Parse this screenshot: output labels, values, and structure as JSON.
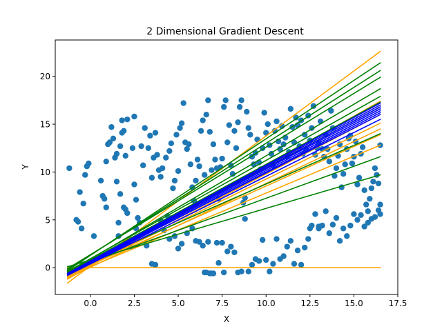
{
  "chart_data": {
    "type": "scatter",
    "title": "2 Dimensional Gradient Descent",
    "xlabel": "X",
    "ylabel": "Y",
    "xlim": [
      -2.0,
      17.5
    ],
    "ylim": [
      -2.8,
      23.8
    ],
    "xticks": [
      "0.0",
      "2.5",
      "5.0",
      "7.5",
      "10.0",
      "12.5",
      "15.0",
      "17.5"
    ],
    "yticks": [
      "0",
      "5",
      "10",
      "15",
      "20"
    ],
    "grid": false,
    "colors": {
      "points": "#1f77b4",
      "orange": "#ffa500",
      "green": "#008000",
      "blue": "#0000ff"
    },
    "points": [
      [
        -1.2,
        10.4
      ],
      [
        -0.8,
        5.0
      ],
      [
        -0.7,
        4.8
      ],
      [
        -0.6,
        7.9
      ],
      [
        -0.5,
        4.1
      ],
      [
        -0.4,
        6.7
      ],
      [
        -0.3,
        9.7
      ],
      [
        -0.2,
        10.6
      ],
      [
        -0.1,
        10.9
      ],
      [
        0.2,
        3.3
      ],
      [
        0.6,
        9.1
      ],
      [
        0.7,
        7.5
      ],
      [
        0.8,
        7.2
      ],
      [
        0.9,
        6.3
      ],
      [
        0.9,
        11.1
      ],
      [
        1.0,
        12.9
      ],
      [
        1.1,
        13.1
      ],
      [
        1.2,
        14.7
      ],
      [
        1.3,
        13.5
      ],
      [
        1.4,
        11.5
      ],
      [
        1.5,
        11.9
      ],
      [
        1.5,
        9.0
      ],
      [
        1.6,
        4.7
      ],
      [
        1.6,
        3.3
      ],
      [
        1.7,
        7.7
      ],
      [
        1.7,
        12.7
      ],
      [
        1.8,
        14.1
      ],
      [
        1.8,
        15.4
      ],
      [
        1.9,
        6.3
      ],
      [
        1.9,
        14.3
      ],
      [
        2.0,
        11.7
      ],
      [
        2.0,
        6.1
      ],
      [
        2.1,
        15.5
      ],
      [
        2.1,
        5.7
      ],
      [
        2.2,
        3.0
      ],
      [
        2.3,
        2.2
      ],
      [
        2.4,
        12.5
      ],
      [
        2.5,
        8.7
      ],
      [
        2.5,
        15.8
      ],
      [
        2.6,
        4.1
      ],
      [
        2.6,
        7.1
      ],
      [
        2.7,
        5.2
      ],
      [
        2.8,
        4.7
      ],
      [
        2.9,
        12.7
      ],
      [
        3.0,
        10.7
      ],
      [
        3.1,
        14.6
      ],
      [
        3.2,
        2.3
      ],
      [
        3.3,
        12.5
      ],
      [
        3.4,
        13.8
      ],
      [
        3.5,
        9.4
      ],
      [
        3.6,
        11.5
      ],
      [
        3.7,
        14.1
      ],
      [
        3.8,
        11.8
      ],
      [
        3.9,
        10.2
      ],
      [
        4.0,
        9.5
      ],
      [
        4.1,
        10.4
      ],
      [
        4.3,
        11.5
      ],
      [
        4.4,
        5.4
      ],
      [
        4.5,
        12.2
      ],
      [
        4.6,
        13.0
      ],
      [
        4.7,
        8.3
      ],
      [
        4.8,
        9.1
      ],
      [
        4.9,
        13.9
      ],
      [
        5.0,
        10.1
      ],
      [
        5.1,
        14.6
      ],
      [
        5.2,
        15.1
      ],
      [
        5.3,
        17.2
      ],
      [
        5.4,
        13.1
      ],
      [
        5.5,
        12.4
      ],
      [
        5.6,
        12.9
      ],
      [
        5.7,
        10.8
      ],
      [
        5.8,
        8.4
      ],
      [
        5.9,
        7.0
      ],
      [
        6.0,
        9.1
      ],
      [
        6.1,
        11.3
      ],
      [
        6.2,
        10.6
      ],
      [
        6.3,
        14.3
      ],
      [
        6.4,
        15.4
      ],
      [
        6.5,
        9.7
      ],
      [
        6.6,
        16.0
      ],
      [
        6.7,
        17.5
      ],
      [
        6.8,
        14.2
      ],
      [
        6.9,
        10.2
      ],
      [
        7.0,
        12.9
      ],
      [
        7.1,
        11.3
      ],
      [
        7.2,
        10.4
      ],
      [
        7.3,
        7.2
      ],
      [
        7.4,
        10.5
      ],
      [
        7.5,
        11.4
      ],
      [
        7.6,
        16.8
      ],
      [
        7.7,
        17.5
      ],
      [
        7.8,
        13.1
      ],
      [
        7.9,
        14.9
      ],
      [
        8.0,
        10.7
      ],
      [
        8.1,
        9.8
      ],
      [
        8.2,
        14.3
      ],
      [
        8.3,
        12.5
      ],
      [
        8.4,
        15.2
      ],
      [
        8.5,
        16.8
      ],
      [
        8.6,
        17.5
      ],
      [
        8.7,
        6.8
      ],
      [
        8.8,
        7.3
      ],
      [
        8.9,
        16.3
      ],
      [
        9.0,
        14.6
      ],
      [
        9.1,
        13.9
      ],
      [
        9.2,
        11.6
      ],
      [
        9.3,
        10.8
      ],
      [
        9.4,
        12.0
      ],
      [
        9.5,
        13.4
      ],
      [
        9.6,
        11.0
      ],
      [
        9.7,
        10.3
      ],
      [
        9.8,
        12.5
      ],
      [
        9.9,
        16.2
      ],
      [
        10.0,
        14.1
      ],
      [
        10.1,
        15.0
      ],
      [
        10.2,
        12.8
      ],
      [
        10.3,
        11.9
      ],
      [
        10.4,
        10.7
      ],
      [
        10.5,
        14.3
      ],
      [
        10.6,
        15.3
      ],
      [
        10.7,
        13.2
      ],
      [
        10.8,
        12.4
      ],
      [
        10.9,
        14.8
      ],
      [
        11.0,
        12.9
      ],
      [
        11.1,
        13.6
      ],
      [
        11.2,
        11.6
      ],
      [
        11.3,
        12.1
      ],
      [
        11.4,
        16.6
      ],
      [
        11.5,
        14.7
      ],
      [
        11.6,
        13.1
      ],
      [
        11.7,
        15.7
      ],
      [
        11.8,
        14.9
      ],
      [
        11.9,
        12.7
      ],
      [
        12.0,
        15.4
      ],
      [
        12.1,
        11.9
      ],
      [
        12.2,
        13.9
      ],
      [
        12.3,
        12.3
      ],
      [
        12.4,
        15.9
      ],
      [
        12.5,
        13.3
      ],
      [
        12.6,
        14.6
      ],
      [
        12.7,
        16.9
      ],
      [
        12.8,
        11.8
      ],
      [
        12.9,
        12.5
      ],
      [
        13.0,
        13.0
      ],
      [
        13.1,
        15.3
      ],
      [
        13.2,
        12.4
      ],
      [
        13.3,
        11.6
      ],
      [
        13.4,
        13.9
      ],
      [
        13.5,
        12.4
      ],
      [
        13.6,
        11.1
      ],
      [
        13.7,
        16.4
      ],
      [
        13.8,
        14.6
      ],
      [
        13.9,
        9.6
      ],
      [
        14.0,
        10.4
      ],
      [
        14.1,
        11.7
      ],
      [
        14.2,
        12.9
      ],
      [
        14.3,
        8.4
      ],
      [
        14.4,
        9.8
      ],
      [
        14.5,
        10.8
      ],
      [
        14.6,
        12.4
      ],
      [
        14.7,
        13.5
      ],
      [
        14.8,
        13.8
      ],
      [
        14.9,
        10.9
      ],
      [
        15.0,
        11.6
      ],
      [
        15.1,
        13.2
      ],
      [
        15.2,
        8.7
      ],
      [
        15.3,
        9.4
      ],
      [
        15.4,
        11.9
      ],
      [
        15.5,
        12.6
      ],
      [
        15.6,
        8.1
      ],
      [
        15.7,
        6.6
      ],
      [
        15.8,
        5.9
      ],
      [
        15.9,
        7.2
      ],
      [
        16.0,
        8.3
      ],
      [
        16.1,
        9.0
      ],
      [
        16.2,
        10.4
      ],
      [
        16.3,
        9.7
      ],
      [
        16.4,
        8.8
      ],
      [
        16.5,
        6.6
      ],
      [
        16.5,
        12.8
      ],
      [
        3.5,
        0.4
      ],
      [
        3.7,
        0.3
      ],
      [
        4.0,
        4.9
      ],
      [
        4.2,
        3.9
      ],
      [
        4.5,
        3.0
      ],
      [
        4.8,
        3.3
      ],
      [
        5.0,
        2.0
      ],
      [
        5.2,
        2.5
      ],
      [
        5.5,
        3.6
      ],
      [
        5.8,
        4.1
      ],
      [
        6.0,
        2.8
      ],
      [
        6.2,
        2.7
      ],
      [
        6.4,
        2.3
      ],
      [
        6.5,
        -0.5
      ],
      [
        6.6,
        -0.5
      ],
      [
        6.7,
        2.7
      ],
      [
        6.8,
        -0.6
      ],
      [
        6.9,
        -0.6
      ],
      [
        7.0,
        -0.6
      ],
      [
        7.2,
        2.6
      ],
      [
        7.3,
        0.5
      ],
      [
        7.5,
        2.6
      ],
      [
        7.6,
        -0.5
      ],
      [
        7.8,
        1.7
      ],
      [
        8.0,
        2.2
      ],
      [
        8.2,
        1.6
      ],
      [
        8.4,
        -0.5
      ],
      [
        8.6,
        -0.4
      ],
      [
        8.8,
        5.1
      ],
      [
        9.0,
        -0.4
      ],
      [
        9.2,
        0.3
      ],
      [
        9.4,
        0.9
      ],
      [
        9.6,
        0.7
      ],
      [
        9.8,
        2.9
      ],
      [
        10.0,
        0.8
      ],
      [
        10.2,
        -0.4
      ],
      [
        10.4,
        0.4
      ],
      [
        10.6,
        3.0
      ],
      [
        10.8,
        0.9
      ],
      [
        11.0,
        1.2
      ],
      [
        11.2,
        2.2
      ],
      [
        11.4,
        2.8
      ],
      [
        11.6,
        0.4
      ],
      [
        11.8,
        1.8
      ],
      [
        12.0,
        0.3
      ],
      [
        12.2,
        2.1
      ],
      [
        12.4,
        3.0
      ],
      [
        12.6,
        4.4
      ],
      [
        12.8,
        5.6
      ],
      [
        13.0,
        4.1
      ],
      [
        13.2,
        4.4
      ],
      [
        13.4,
        5.9
      ],
      [
        13.6,
        3.6
      ],
      [
        13.8,
        4.5
      ],
      [
        14.0,
        5.2
      ],
      [
        14.2,
        2.8
      ],
      [
        14.4,
        4.1
      ],
      [
        14.6,
        3.3
      ],
      [
        14.8,
        4.4
      ],
      [
        15.0,
        5.6
      ],
      [
        15.2,
        5.0
      ],
      [
        15.4,
        5.5
      ],
      [
        15.6,
        4.3
      ],
      [
        15.8,
        4.7
      ],
      [
        16.0,
        5.1
      ],
      [
        16.2,
        5.3
      ],
      [
        16.4,
        6.0
      ],
      [
        16.5,
        5.6
      ],
      [
        12.5,
        4.1
      ],
      [
        13.0,
        4.3
      ]
    ],
    "lines": [
      {
        "color": "#ffa500",
        "x": [
          -1.3,
          16.5
        ],
        "y": [
          0.0,
          0.0
        ]
      },
      {
        "color": "#ffa500",
        "x": [
          -1.3,
          16.5
        ],
        "y": [
          -1.6,
          22.6
        ]
      },
      {
        "color": "#ffa500",
        "x": [
          -1.3,
          16.5
        ],
        "y": [
          -0.9,
          12.8
        ]
      },
      {
        "color": "#ffa500",
        "x": [
          -1.3,
          16.5
        ],
        "y": [
          -1.1,
          14.5
        ]
      },
      {
        "color": "#ffa500",
        "x": [
          -1.3,
          16.5
        ],
        "y": [
          -0.8,
          13.9
        ]
      },
      {
        "color": "#ffa500",
        "x": [
          -1.3,
          16.5
        ],
        "y": [
          -0.9,
          15.1
        ]
      },
      {
        "color": "#ffa500",
        "x": [
          -1.3,
          16.5
        ],
        "y": [
          -1.2,
          17.4
        ]
      },
      {
        "color": "#ffa500",
        "x": [
          -1.3,
          16.5
        ],
        "y": [
          -1.0,
          16.0
        ]
      },
      {
        "color": "#008000",
        "x": [
          -1.3,
          16.5
        ],
        "y": [
          0.1,
          9.7
        ]
      },
      {
        "color": "#008000",
        "x": [
          -1.3,
          16.5
        ],
        "y": [
          -0.3,
          11.6
        ]
      },
      {
        "color": "#008000",
        "x": [
          -1.3,
          16.5
        ],
        "y": [
          -0.4,
          14.0
        ]
      },
      {
        "color": "#008000",
        "x": [
          -1.3,
          16.5
        ],
        "y": [
          -0.3,
          21.4
        ]
      },
      {
        "color": "#008000",
        "x": [
          -1.3,
          16.5
        ],
        "y": [
          -0.2,
          20.6
        ]
      },
      {
        "color": "#008000",
        "x": [
          -1.3,
          16.5
        ],
        "y": [
          -0.1,
          19.9
        ]
      },
      {
        "color": "#008000",
        "x": [
          -1.3,
          16.5
        ],
        "y": [
          -0.5,
          18.7
        ]
      },
      {
        "color": "#008000",
        "x": [
          -1.3,
          16.5
        ],
        "y": [
          -0.4,
          17.9
        ]
      },
      {
        "color": "#008000",
        "x": [
          -1.3,
          16.5
        ],
        "y": [
          -0.5,
          17.3
        ]
      },
      {
        "color": "#008000",
        "x": [
          -1.3,
          16.5
        ],
        "y": [
          -0.6,
          16.8
        ]
      },
      {
        "color": "#0000ff",
        "x": [
          -1.3,
          16.5
        ],
        "y": [
          -0.8,
          15.5
        ]
      },
      {
        "color": "#0000ff",
        "x": [
          -1.3,
          16.5
        ],
        "y": [
          -0.7,
          16.0
        ]
      },
      {
        "color": "#0000ff",
        "x": [
          -1.3,
          16.5
        ],
        "y": [
          -0.7,
          16.4
        ]
      },
      {
        "color": "#0000ff",
        "x": [
          -1.3,
          16.5
        ],
        "y": [
          -0.7,
          16.8
        ]
      },
      {
        "color": "#0000ff",
        "x": [
          -1.3,
          16.5
        ],
        "y": [
          -0.6,
          17.0
        ]
      },
      {
        "color": "#0000ff",
        "x": [
          -1.3,
          16.5
        ],
        "y": [
          -0.6,
          17.2
        ]
      },
      {
        "color": "#0000ff",
        "x": [
          -1.3,
          16.5
        ],
        "y": [
          -0.8,
          16.2
        ]
      },
      {
        "color": "#0000ff",
        "x": [
          -1.3,
          16.5
        ],
        "y": [
          -0.6,
          16.6
        ]
      }
    ]
  }
}
